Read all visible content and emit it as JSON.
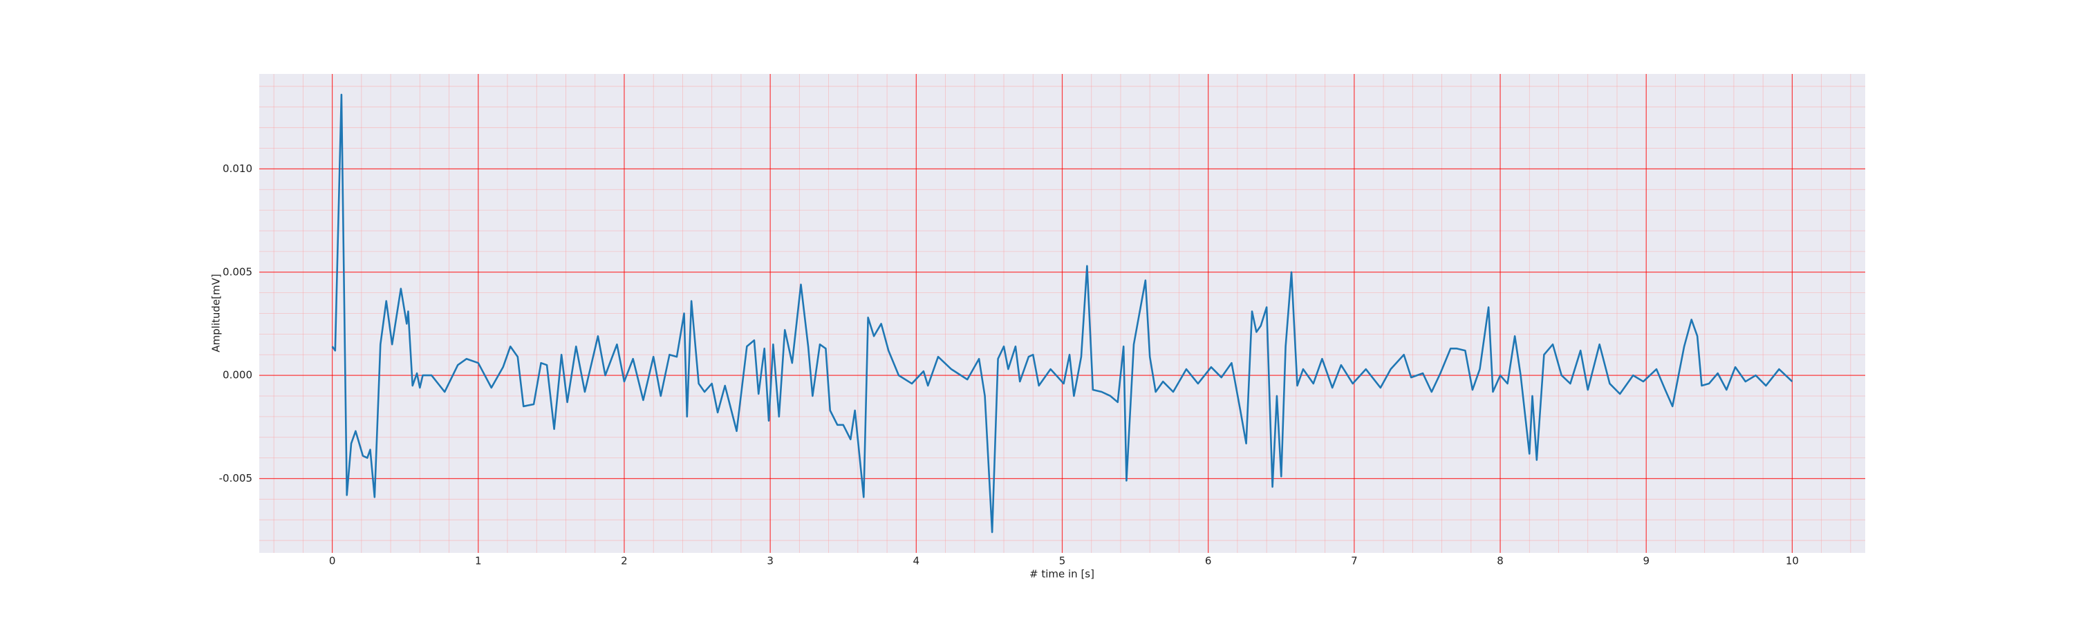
{
  "chart_data": {
    "type": "line",
    "xlabel": "# time in [s]",
    "ylabel": "Amplitude[mV]",
    "x": [
      0,
      0.02,
      0.063,
      0.1,
      0.13,
      0.16,
      0.21,
      0.24,
      0.26,
      0.29,
      0.33,
      0.37,
      0.41,
      0.47,
      0.51,
      0.52,
      0.55,
      0.58,
      0.6,
      0.62,
      0.68,
      0.77,
      0.86,
      0.92,
      1.0,
      1.09,
      1.17,
      1.22,
      1.27,
      1.31,
      1.38,
      1.43,
      1.47,
      1.52,
      1.57,
      1.61,
      1.67,
      1.73,
      1.82,
      1.87,
      1.95,
      2.0,
      2.06,
      2.13,
      2.2,
      2.25,
      2.31,
      2.36,
      2.41,
      2.43,
      2.46,
      2.51,
      2.55,
      2.6,
      2.64,
      2.69,
      2.77,
      2.84,
      2.89,
      2.92,
      2.96,
      2.99,
      3.02,
      3.06,
      3.1,
      3.15,
      3.21,
      3.26,
      3.29,
      3.34,
      3.38,
      3.41,
      3.46,
      3.5,
      3.55,
      3.58,
      3.64,
      3.67,
      3.71,
      3.76,
      3.81,
      3.88,
      3.97,
      4.05,
      4.08,
      4.15,
      4.24,
      4.35,
      4.43,
      4.47,
      4.52,
      4.56,
      4.6,
      4.63,
      4.68,
      4.71,
      4.77,
      4.8,
      4.84,
      4.92,
      5.01,
      5.05,
      5.08,
      5.13,
      5.17,
      5.21,
      5.27,
      5.33,
      5.38,
      5.42,
      5.44,
      5.49,
      5.57,
      5.6,
      5.64,
      5.69,
      5.76,
      5.85,
      5.93,
      6.02,
      6.09,
      6.16,
      6.22,
      6.26,
      6.3,
      6.33,
      6.36,
      6.4,
      6.44,
      6.47,
      6.5,
      6.53,
      6.57,
      6.61,
      6.65,
      6.72,
      6.78,
      6.85,
      6.91,
      6.99,
      7.08,
      7.18,
      7.25,
      7.34,
      7.39,
      7.47,
      7.53,
      7.59,
      7.66,
      7.7,
      7.76,
      7.81,
      7.86,
      7.92,
      7.95,
      8.0,
      8.05,
      8.1,
      8.14,
      8.2,
      8.22,
      8.25,
      8.3,
      8.36,
      8.42,
      8.48,
      8.55,
      8.6,
      8.68,
      8.75,
      8.82,
      8.91,
      8.98,
      9.07,
      9.13,
      9.18,
      9.26,
      9.31,
      9.35,
      9.38,
      9.43,
      9.49,
      9.55,
      9.61,
      9.68,
      9.75,
      9.82,
      9.91,
      10.0
    ],
    "series": [
      {
        "color": "#1f77b4",
        "values": [
          0.0014,
          0.0012,
          0.0136,
          -0.0058,
          -0.0033,
          -0.0027,
          -0.0039,
          -0.004,
          -0.0036,
          -0.0059,
          0.0015,
          0.0036,
          0.0015,
          0.0042,
          0.0025,
          0.0031,
          -0.0005,
          0.0001,
          -0.0006,
          0,
          0,
          -0.0008,
          0.0005,
          0.0008,
          0.0006,
          -0.0006,
          0.0004,
          0.0014,
          0.0009,
          -0.0015,
          -0.0014,
          0.0006,
          0.0005,
          -0.0026,
          0.001,
          -0.0013,
          0.0014,
          -0.0008,
          0.0019,
          0,
          0.0015,
          -0.0003,
          0.0008,
          -0.0012,
          0.0009,
          -0.001,
          0.001,
          0.0009,
          0.003,
          -0.002,
          0.0036,
          -0.0004,
          -0.0008,
          -0.0004,
          -0.0018,
          -0.0005,
          -0.0027,
          0.0014,
          0.0017,
          -0.0009,
          0.0013,
          -0.0022,
          0.0015,
          -0.002,
          0.0022,
          0.0006,
          0.0044,
          0.0014,
          -0.001,
          0.0015,
          0.0013,
          -0.0017,
          -0.0024,
          -0.0024,
          -0.0031,
          -0.0017,
          -0.0059,
          0.0028,
          0.0019,
          0.0025,
          0.0012,
          0,
          -0.0004,
          0.0002,
          -0.0005,
          0.0009,
          0.0003,
          -0.0002,
          0.0008,
          -0.001,
          -0.0076,
          0.0008,
          0.0014,
          0.0003,
          0.0014,
          -0.0003,
          0.0009,
          0.001,
          -0.0005,
          0.0003,
          -0.0004,
          0.001,
          -0.001,
          0.0009,
          0.0053,
          -0.0007,
          -0.0008,
          -0.001,
          -0.0013,
          0.0014,
          -0.0051,
          0.0015,
          0.0046,
          0.0009,
          -0.0008,
          -0.0003,
          -0.0008,
          0.0003,
          -0.0004,
          0.0004,
          -0.0001,
          0.0006,
          -0.0017,
          -0.0033,
          0.0031,
          0.0021,
          0.0024,
          0.0033,
          -0.0054,
          -0.001,
          -0.0049,
          0.0014,
          0.005,
          -0.0005,
          0.0003,
          -0.0004,
          0.0008,
          -0.0006,
          0.0005,
          -0.0004,
          0.0003,
          -0.0006,
          0.0003,
          0.001,
          -0.0001,
          0.0001,
          -0.0008,
          0.0001,
          0.0013,
          0.0013,
          0.0012,
          -0.0007,
          0.0003,
          0.0033,
          -0.0008,
          0,
          -0.0004,
          0.0019,
          0,
          -0.0038,
          -0.001,
          -0.0041,
          0.001,
          0.0015,
          0,
          -0.0004,
          0.0012,
          -0.0007,
          0.0015,
          -0.0004,
          -0.0009,
          0,
          -0.0003,
          0.0003,
          -0.0007,
          -0.0015,
          0.0014,
          0.0027,
          0.0019,
          -0.0005,
          -0.0004,
          0.0001,
          -0.0007,
          0.0004,
          -0.0003,
          0,
          -0.0005,
          0.0003,
          -0.0003
        ]
      }
    ],
    "xlim": [
      -0.5,
      10.5
    ],
    "ylim": [
      -0.0086,
      0.0146
    ],
    "xticks": [
      0,
      1,
      2,
      3,
      4,
      5,
      6,
      7,
      8,
      9,
      10
    ],
    "yticks": [
      {
        "value": -0.005,
        "label": "-0.005"
      },
      {
        "value": 0,
        "label": "0.000"
      },
      {
        "value": 0.005,
        "label": "0.005"
      },
      {
        "value": 0.01,
        "label": "0.010"
      }
    ],
    "xminorticks": [
      -0.4,
      -0.2,
      0.2,
      0.4,
      0.6,
      0.8,
      1.2,
      1.4,
      1.6,
      1.8,
      2.2,
      2.4,
      2.6,
      2.8,
      3.2,
      3.4,
      3.6,
      3.8,
      4.2,
      4.4,
      4.6,
      4.8,
      5.2,
      5.4,
      5.6,
      5.8,
      6.2,
      6.4,
      6.6,
      6.8,
      7.2,
      7.4,
      7.6,
      7.8,
      8.2,
      8.4,
      8.6,
      8.8,
      9.2,
      9.4,
      9.6,
      9.8,
      10.2,
      10.4
    ],
    "yminorticks": [
      -0.008,
      -0.007,
      -0.006,
      -0.004,
      -0.003,
      -0.002,
      -0.001,
      0.001,
      0.002,
      0.003,
      0.004,
      0.006,
      0.007,
      0.008,
      0.009,
      0.011,
      0.012,
      0.013,
      0.014
    ],
    "grid": true
  }
}
